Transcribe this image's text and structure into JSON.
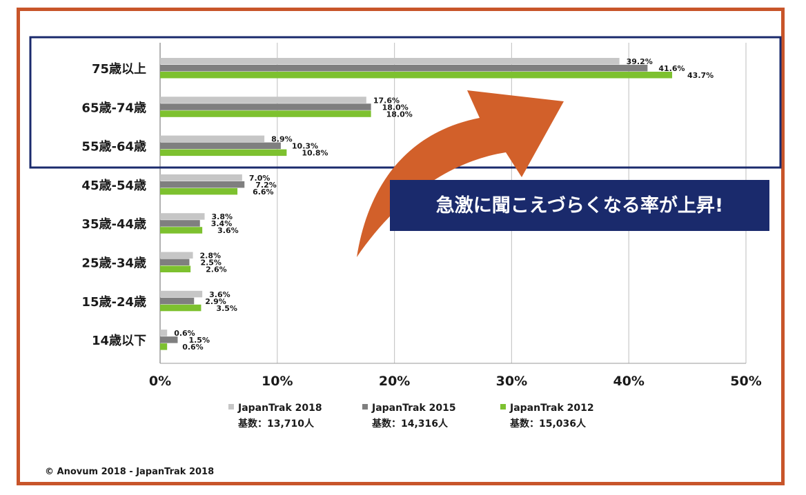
{
  "chart_data": {
    "type": "bar",
    "orientation": "horizontal",
    "categories": [
      "75歳以上",
      "65歳-74歳",
      "55歳-64歳",
      "45歳-54歳",
      "35歳-44歳",
      "25歳-34歳",
      "15歳-24歳",
      "14歳以下"
    ],
    "series": [
      {
        "name": "JapanTrak 2018",
        "sample": "基数：13,710人",
        "color": "#c6c6c6",
        "values": [
          39.2,
          17.6,
          8.9,
          7.0,
          3.8,
          2.8,
          3.6,
          0.6
        ],
        "labels": [
          "39.2%",
          "17.6%",
          "8.9%",
          "7.0%",
          "3.8%",
          "2.8%",
          "3.6%",
          "0.6%"
        ]
      },
      {
        "name": "JapanTrak 2015",
        "sample": "基数：14,316人",
        "color": "#7f7f7f",
        "values": [
          41.6,
          18.0,
          10.3,
          7.2,
          3.4,
          2.5,
          2.9,
          1.5
        ],
        "labels": [
          "41.6%",
          "18.0%",
          "10.3%",
          "7.2%",
          "3.4%",
          "2.5%",
          "2.9%",
          "1.5%"
        ]
      },
      {
        "name": "JapanTrak 2012",
        "sample": "基数：15,036人",
        "color": "#7dc12f",
        "values": [
          43.7,
          18.0,
          10.8,
          6.6,
          3.6,
          2.6,
          3.5,
          0.6
        ],
        "labels": [
          "43.7%",
          "18.0%",
          "10.8%",
          "6.6%",
          "3.6%",
          "2.6%",
          "3.5%",
          "0.6%"
        ]
      }
    ],
    "xlim": [
      0,
      50
    ],
    "xticks": [
      "0%",
      "10%",
      "20%",
      "30%",
      "40%",
      "50%"
    ],
    "grid": true,
    "legend_position": "bottom",
    "highlight_categories": [
      "75歳以上",
      "65歳-74歳",
      "55歳-64歳"
    ],
    "annotation": "急激に聞こえづらくなる率が上昇!"
  },
  "copyright": "© Anovum 2018 - JapanTrak 2018",
  "colors": {
    "frame": "#c8552a",
    "highlight_box": "#1a2a6c",
    "arrow": "#d2602a",
    "callout_bg": "#1a2a6c"
  }
}
